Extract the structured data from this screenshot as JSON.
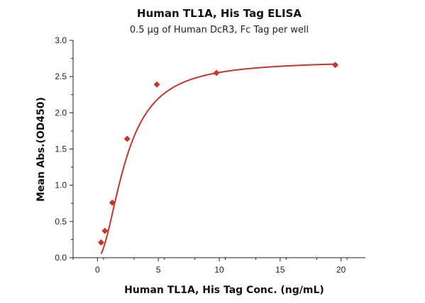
{
  "chart_data": {
    "type": "scatter",
    "title": "Human TL1A, His Tag ELISA",
    "subtitle": "0.5 μg of Human DcR3, Fc Tag per well",
    "xlabel": "Human TL1A, His Tag Conc. (ng/mL)",
    "ylabel": "Mean Abs.(OD450)",
    "xlim": [
      -2,
      22
    ],
    "ylim": [
      0,
      3
    ],
    "x_ticks": [
      0,
      5,
      10,
      15,
      20
    ],
    "y_ticks": [
      0.0,
      0.5,
      1.0,
      1.5,
      2.0,
      2.5,
      3.0
    ],
    "x_tick_labels": [
      "0",
      "5",
      "10",
      "15",
      "20"
    ],
    "y_tick_labels": [
      "0.0",
      "0.5",
      "1.0",
      "1.5",
      "2.0",
      "2.5",
      "3.0"
    ],
    "grid": false,
    "series": [
      {
        "marker": "diamond",
        "color": "#c0392b",
        "x": [
          0.305,
          0.61,
          1.22,
          2.44,
          4.88,
          9.77,
          19.53
        ],
        "y": [
          0.21,
          0.37,
          0.76,
          1.64,
          2.39,
          2.55,
          2.66
        ],
        "fit_curve": true
      }
    ]
  }
}
